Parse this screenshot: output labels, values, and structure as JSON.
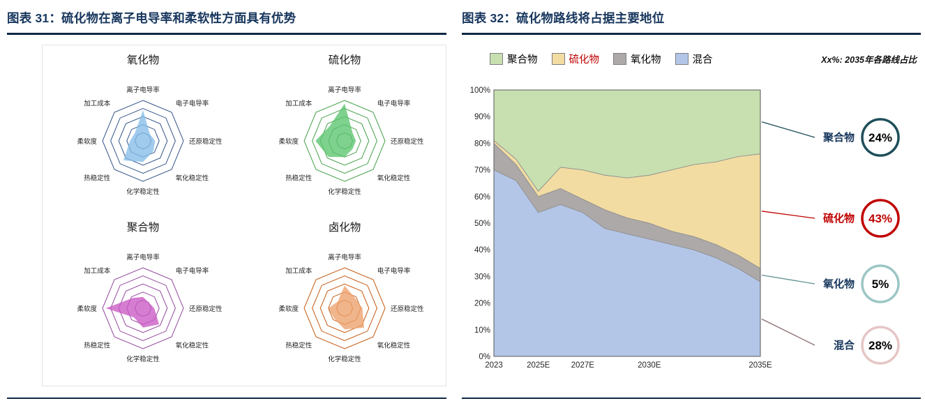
{
  "left_panel": {
    "title": "图表 31：硫化物在离子电导率和柔软性方面具有优势"
  },
  "right_panel": {
    "title": "图表 32：硫化物路线将占据主要地位",
    "note": "Xx%: 2035年各路线占比",
    "legend": [
      {
        "label": "聚合物",
        "swatch": "#C8DFB0",
        "label_color": "#000000"
      },
      {
        "label": "硫化物",
        "swatch": "#F2DCA2",
        "label_color": "#C00000"
      },
      {
        "label": "氧化物",
        "swatch": "#ADA9A9",
        "label_color": "#000000"
      },
      {
        "label": "混合",
        "swatch": "#B4C6E7",
        "label_color": "#000000"
      }
    ]
  },
  "chart_data": [
    {
      "type": "radar",
      "axes": [
        "离子电导率",
        "电子电导率",
        "还原稳定性",
        "氧化稳定性",
        "化学稳定性",
        "热稳定性",
        "柔软度",
        "加工成本"
      ],
      "scale_max": 5,
      "rings": 5,
      "charts": [
        {
          "title": "氧化物",
          "fill": "#85BCE8",
          "ring": "#34558B",
          "values": [
            3.8,
            1.2,
            1.5,
            1.8,
            2.6,
            3.4,
            1.6,
            1.4
          ]
        },
        {
          "title": "硫化物",
          "fill": "#5BC46E",
          "ring": "#45A049",
          "values": [
            4.6,
            1.4,
            1.4,
            1.4,
            2.0,
            2.8,
            3.6,
            2.6
          ]
        },
        {
          "title": "聚合物",
          "fill": "#C958C4",
          "ring": "#94489E",
          "values": [
            1.4,
            1.0,
            1.4,
            2.8,
            2.4,
            1.6,
            4.6,
            1.8
          ]
        },
        {
          "title": "卤化物",
          "fill": "#EDA06A",
          "ring": "#C55A11",
          "values": [
            2.8,
            1.8,
            2.2,
            3.4,
            2.6,
            1.8,
            2.0,
            1.2
          ]
        }
      ]
    },
    {
      "type": "area",
      "stacked": true,
      "x": [
        2023,
        2024,
        2025,
        2026,
        2027,
        2028,
        2029,
        2030,
        2031,
        2032,
        2033,
        2034,
        2035
      ],
      "x_ticks": [
        {
          "x": 2023,
          "label": "2023"
        },
        {
          "x": 2025,
          "label": "2025E"
        },
        {
          "x": 2027,
          "label": "2027E"
        },
        {
          "x": 2030,
          "label": "2030E"
        },
        {
          "x": 2035,
          "label": "2035E"
        }
      ],
      "ylim": [
        0,
        100
      ],
      "y_ticks": [
        "0%",
        "10%",
        "20%",
        "30%",
        "40%",
        "50%",
        "60%",
        "70%",
        "80%",
        "90%",
        "100%"
      ],
      "series": [
        {
          "name": "混合",
          "color": "#B4C6E7",
          "values": [
            70,
            66,
            54,
            57,
            54,
            48,
            46,
            44,
            42,
            40,
            37,
            33,
            28
          ]
        },
        {
          "name": "氧化物",
          "color": "#ADA9A9",
          "values": [
            10,
            6,
            6,
            6,
            5,
            7,
            6,
            6,
            5,
            5,
            5,
            5,
            5
          ]
        },
        {
          "name": "硫化物",
          "color": "#F2DCA2",
          "values": [
            1,
            2,
            2,
            8,
            11,
            13,
            15,
            18,
            23,
            27,
            31,
            37,
            43
          ]
        },
        {
          "name": "聚合物",
          "color": "#C8DFB0",
          "values": [
            19,
            26,
            38,
            29,
            30,
            32,
            33,
            32,
            30,
            28,
            27,
            25,
            24
          ]
        }
      ],
      "callouts": [
        {
          "label": "聚合物",
          "value": "24%",
          "circle": "#1F4E5A",
          "line": "#1F4E5A",
          "label_color": "#17365D",
          "value_color": "#000000"
        },
        {
          "label": "硫化物",
          "value": "43%",
          "circle": "#C00000",
          "line": "#C00000",
          "label_color": "#C00000",
          "value_color": "#C00000"
        },
        {
          "label": "氧化物",
          "value": "5%",
          "circle": "#9CC6C4",
          "line": "#5E8F8F",
          "label_color": "#17365D",
          "value_color": "#000000"
        },
        {
          "label": "混合",
          "value": "28%",
          "circle": "#E5C6C6",
          "line": "#8A6F6F",
          "label_color": "#17365D",
          "value_color": "#000000"
        }
      ]
    }
  ]
}
